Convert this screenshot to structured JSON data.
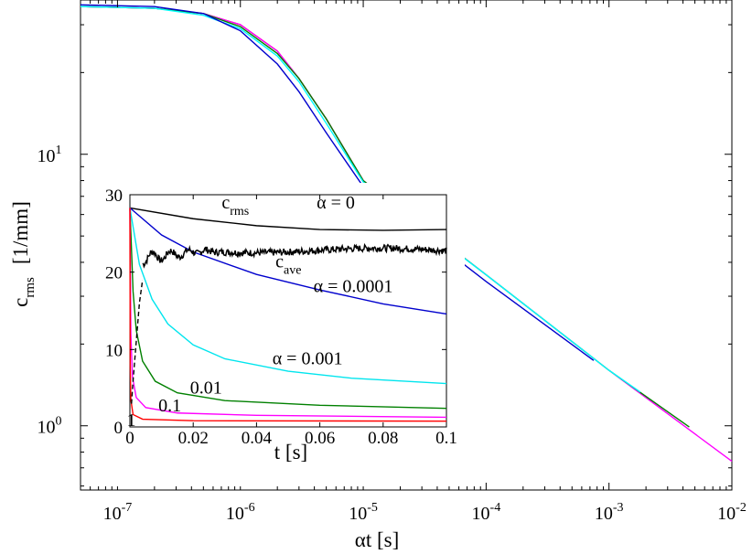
{
  "chart_data": [
    {
      "type": "line",
      "xlabel": "αt  [s]",
      "ylabel_main": "c",
      "ylabel_sub": "rms",
      "ylabel_unit": "[1/mm]",
      "x_scale": "log",
      "y_scale": "log",
      "xlim": [
        5e-08,
        0.01
      ],
      "ylim": [
        0.58,
        37
      ],
      "grid": false,
      "x_ticks": [
        {
          "value": 1e-07,
          "label_base": "10",
          "label_exp": "-7"
        },
        {
          "value": 1e-06,
          "label_base": "10",
          "label_exp": "-6"
        },
        {
          "value": 1e-05,
          "label_base": "10",
          "label_exp": "-5"
        },
        {
          "value": 0.0001,
          "label_base": "10",
          "label_exp": "-4"
        },
        {
          "value": 0.001,
          "label_base": "10",
          "label_exp": "-3"
        },
        {
          "value": 0.01,
          "label_base": "10",
          "label_exp": "-2"
        }
      ],
      "y_ticks": [
        {
          "value": 1,
          "label_base": "10",
          "label_exp": "0"
        },
        {
          "value": 10,
          "label_base": "10",
          "label_exp": "1"
        }
      ],
      "series": [
        {
          "color": "#ff0000",
          "points": [
            [
              5e-08,
              35
            ],
            [
              2e-07,
              34.5
            ],
            [
              5e-07,
              33
            ],
            [
              1e-06,
              30
            ],
            [
              2e-06,
              24
            ],
            [
              3e-06,
              19
            ],
            [
              5e-06,
              13.5
            ],
            [
              1e-05,
              8
            ],
            [
              5e-05,
              4.1
            ]
          ]
        },
        {
          "color": "#ff00ff",
          "points": [
            [
              5e-08,
              35
            ],
            [
              2e-07,
              34.5
            ],
            [
              5e-07,
              33
            ],
            [
              1e-06,
              30
            ],
            [
              2e-06,
              24
            ],
            [
              3e-06,
              19
            ],
            [
              5e-06,
              13.5
            ],
            [
              1e-05,
              8
            ],
            [
              0.0001,
              3.6
            ],
            [
              0.001,
              1.6
            ],
            [
              0.01,
              0.74
            ]
          ]
        },
        {
          "color": "#008000",
          "points": [
            [
              5e-08,
              35
            ],
            [
              2e-07,
              34.5
            ],
            [
              5e-07,
              33
            ],
            [
              1e-06,
              29.5
            ],
            [
              2e-06,
              23.5
            ],
            [
              3e-06,
              19
            ],
            [
              5e-06,
              13.5
            ],
            [
              1e-05,
              8
            ],
            [
              0.0001,
              3.6
            ],
            [
              0.001,
              1.6
            ],
            [
              0.0045,
              0.99
            ]
          ]
        },
        {
          "color": "#00ffff",
          "points": [
            [
              5e-08,
              35
            ],
            [
              2e-07,
              34.5
            ],
            [
              5e-07,
              32.5
            ],
            [
              1e-06,
              29
            ],
            [
              2e-06,
              23
            ],
            [
              3e-06,
              18.5
            ],
            [
              5e-06,
              13
            ],
            [
              1e-05,
              7.9
            ],
            [
              0.0001,
              3.6
            ],
            [
              0.001,
              1.6
            ],
            [
              0.0018,
              1.33
            ]
          ]
        },
        {
          "color": "#0000cd",
          "points": [
            [
              5e-08,
              35.5
            ],
            [
              2e-07,
              35
            ],
            [
              5e-07,
              33
            ],
            [
              1e-06,
              28.5
            ],
            [
              2e-06,
              21.5
            ],
            [
              3e-06,
              17
            ],
            [
              5e-06,
              12
            ],
            [
              1e-05,
              7.6
            ],
            [
              0.0001,
              3.4
            ],
            [
              0.00075,
              1.74
            ]
          ]
        }
      ]
    },
    {
      "type": "line",
      "xlabel": "t  [s]",
      "xlim": [
        0,
        0.1
      ],
      "ylim": [
        0,
        30
      ],
      "x_ticks": [
        "0",
        "0.02",
        "0.04",
        "0.06",
        "0.08",
        "0.1"
      ],
      "x_tick_values": [
        0,
        0.02,
        0.04,
        0.06,
        0.08,
        0.1
      ],
      "y_ticks": [
        "0",
        "10",
        "20",
        "30"
      ],
      "y_tick_values": [
        0,
        10,
        20,
        30
      ],
      "series": [
        {
          "color": "#000000",
          "dash": "solid",
          "points": [
            [
              0,
              28.3
            ],
            [
              0.02,
              26.9
            ],
            [
              0.04,
              26.0
            ],
            [
              0.06,
              25.5
            ],
            [
              0.08,
              25.4
            ],
            [
              0.1,
              25.5
            ]
          ]
        },
        {
          "color": "#0000cd",
          "dash": "solid",
          "points": [
            [
              0,
              28.3
            ],
            [
              0.01,
              24.8
            ],
            [
              0.02,
              22.6
            ],
            [
              0.04,
              19.7
            ],
            [
              0.06,
              17.7
            ],
            [
              0.08,
              15.9
            ],
            [
              0.1,
              14.6
            ]
          ]
        },
        {
          "color": "#00e5ee",
          "dash": "solid",
          "points": [
            [
              0,
              28.3
            ],
            [
              0.003,
              21
            ],
            [
              0.007,
              16.5
            ],
            [
              0.012,
              13.3
            ],
            [
              0.02,
              10.6
            ],
            [
              0.03,
              8.8
            ],
            [
              0.05,
              7.2
            ],
            [
              0.07,
              6.3
            ],
            [
              0.1,
              5.6
            ]
          ]
        },
        {
          "color": "#008000",
          "dash": "solid",
          "points": [
            [
              0,
              28.3
            ],
            [
              0.001,
              17.5
            ],
            [
              0.002,
              12.5
            ],
            [
              0.004,
              8.5
            ],
            [
              0.008,
              5.9
            ],
            [
              0.015,
              4.4
            ],
            [
              0.03,
              3.4
            ],
            [
              0.06,
              2.8
            ],
            [
              0.1,
              2.4
            ]
          ]
        },
        {
          "color": "#ff00ff",
          "dash": "solid",
          "points": [
            [
              0,
              28.3
            ],
            [
              0.0003,
              12
            ],
            [
              0.0008,
              6.5
            ],
            [
              0.002,
              3.8
            ],
            [
              0.005,
              2.5
            ],
            [
              0.015,
              1.8
            ],
            [
              0.04,
              1.5
            ],
            [
              0.1,
              1.25
            ]
          ]
        },
        {
          "color": "#ff0000",
          "dash": "solid",
          "points": [
            [
              0,
              28.3
            ],
            [
              0.0001,
              8
            ],
            [
              0.0003,
              3.5
            ],
            [
              0.001,
              1.6
            ],
            [
              0.004,
              1.0
            ],
            [
              0.02,
              0.8
            ],
            [
              0.1,
              0.75
            ]
          ]
        },
        {
          "color": "#000000",
          "dash": "dashed",
          "points": [
            [
              0.0005,
              3
            ],
            [
              0.001,
              6
            ],
            [
              0.002,
              11
            ],
            [
              0.003,
              16
            ],
            [
              0.004,
              19
            ]
          ]
        }
      ],
      "annotations": [
        {
          "text": "α = 0",
          "at": [
            0.059,
            28.2
          ]
        },
        {
          "text": "α = 0.0001",
          "at": [
            0.058,
            17.4
          ]
        },
        {
          "text": "α = 0.001",
          "at": [
            0.045,
            8.1
          ]
        },
        {
          "text": "0.01",
          "at": [
            0.019,
            4.3
          ]
        },
        {
          "text": "0.1",
          "at": [
            0.009,
            2.0
          ]
        },
        {
          "text": "1",
          "at": [
            -0.001,
            0.1
          ]
        },
        {
          "text": "c",
          "sub": "rms",
          "at": [
            0.029,
            28.2
          ]
        },
        {
          "text": "c",
          "sub": "ave",
          "at": [
            0.046,
            20.6
          ]
        }
      ],
      "cave_series": {
        "color": "#000000",
        "x_start": 0.004,
        "x_end": 0.1,
        "mean_start": 21.8,
        "mean_end": 22.8
      }
    }
  ]
}
